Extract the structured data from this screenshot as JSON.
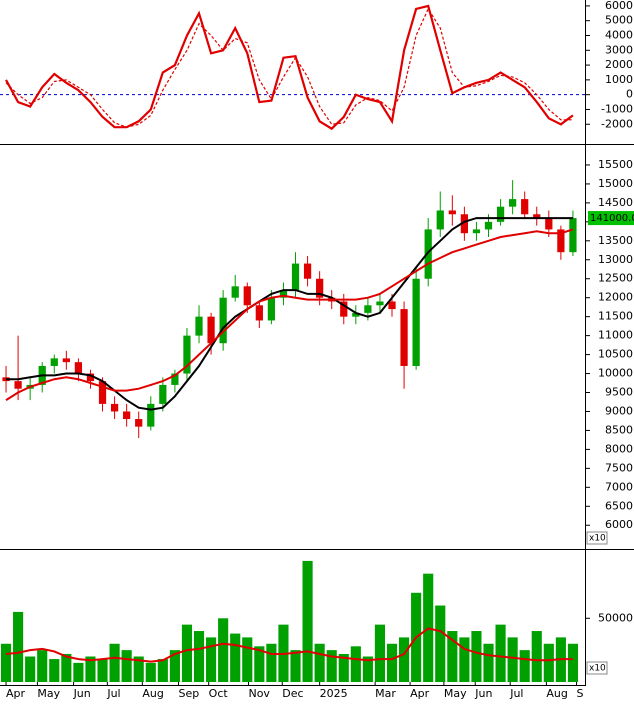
{
  "chart_data": [
    {
      "type": "line",
      "x": [
        0,
        1,
        2,
        3,
        4,
        5,
        6,
        7,
        8,
        9,
        10,
        11,
        12,
        13,
        14,
        15,
        16,
        17,
        18,
        19,
        20,
        21,
        22,
        23,
        24,
        25,
        26,
        27,
        28,
        29,
        30,
        31,
        32,
        33,
        34,
        35,
        36,
        37,
        38,
        39,
        40,
        41,
        42,
        43,
        44,
        45,
        46,
        47
      ],
      "xlim": [
        -0.5,
        48
      ],
      "ylim": [
        -3200,
        6400
      ],
      "yticks": [
        -2000,
        -1000,
        0,
        1000,
        2000,
        3000,
        4000,
        5000,
        6000
      ],
      "reference_line": {
        "value": 0,
        "color": "#0000cc"
      },
      "series": [
        {
          "color": "#e00000",
          "style": "solid",
          "values": [
            1000,
            -500,
            -800,
            500,
            1400,
            800,
            300,
            -500,
            -1500,
            -2200,
            -2200,
            -1800,
            -1000,
            1500,
            2000,
            4000,
            5500,
            2800,
            3000,
            4500,
            2800,
            -500,
            -400,
            2500,
            2600,
            -200,
            -1800,
            -2300,
            -1500,
            0,
            -300,
            -500,
            -1800,
            3000,
            5800,
            6000,
            3000,
            100,
            500,
            800,
            1000,
            1500,
            1000,
            500,
            -500,
            -1600,
            -2000,
            -1400
          ]
        },
        {
          "color": "#e00000",
          "style": "dashed",
          "values": [
            800,
            0,
            -600,
            -200,
            900,
            1000,
            500,
            0,
            -1000,
            -1900,
            -2200,
            -2000,
            -1400,
            300,
            1700,
            3000,
            4800,
            4000,
            3000,
            3800,
            3500,
            1000,
            -300,
            1200,
            2500,
            1200,
            -800,
            -2000,
            -1900,
            -700,
            -200,
            -400,
            -1100,
            500,
            4000,
            5800,
            4500,
            1500,
            500,
            600,
            900,
            1300,
            1200,
            800,
            0,
            -1000,
            -1700,
            -1700
          ]
        }
      ]
    },
    {
      "type": "candlestick",
      "x": [
        0,
        1,
        2,
        3,
        4,
        5,
        6,
        7,
        8,
        9,
        10,
        11,
        12,
        13,
        14,
        15,
        16,
        17,
        18,
        19,
        20,
        21,
        22,
        23,
        24,
        25,
        26,
        27,
        28,
        29,
        30,
        31,
        32,
        33,
        34,
        35,
        36,
        37,
        38,
        39,
        40,
        41,
        42,
        43,
        44,
        45,
        46,
        47
      ],
      "xlim": [
        -0.5,
        48
      ],
      "ylim": [
        5400,
        16000
      ],
      "yticks": [
        6000,
        6500,
        7000,
        7500,
        8000,
        8500,
        9000,
        9500,
        10000,
        10500,
        11000,
        11500,
        12000,
        12500,
        13000,
        13500,
        14000,
        14500,
        15000,
        15500
      ],
      "up_color": "#00a000",
      "down_color": "#e00000",
      "open": [
        9900,
        9800,
        9600,
        9700,
        10200,
        10400,
        10300,
        10000,
        9800,
        9200,
        9000,
        8800,
        8600,
        9200,
        9700,
        10000,
        11000,
        11500,
        10800,
        12000,
        12300,
        11800,
        11400,
        12000,
        12200,
        12900,
        12500,
        12000,
        11900,
        11500,
        11600,
        11800,
        11900,
        11700,
        10200,
        12500,
        13800,
        14300,
        14200,
        13700,
        13800,
        14000,
        14400,
        14600,
        14200,
        14100,
        13800,
        13200
      ],
      "high": [
        10200,
        11000,
        9900,
        10300,
        10500,
        10600,
        10400,
        10100,
        9900,
        9400,
        9200,
        9000,
        9400,
        9900,
        10100,
        11200,
        11800,
        11600,
        12200,
        12600,
        12400,
        11900,
        12200,
        12400,
        13200,
        13100,
        12700,
        12200,
        12100,
        11800,
        12000,
        12100,
        12100,
        11900,
        12800,
        14100,
        14800,
        14700,
        14400,
        14000,
        14200,
        14600,
        15100,
        14800,
        14400,
        14300,
        13900,
        14300
      ],
      "low": [
        9500,
        9300,
        9300,
        9500,
        10000,
        10100,
        9800,
        9600,
        9000,
        8800,
        8600,
        8300,
        8500,
        9000,
        9500,
        9800,
        10800,
        10500,
        10600,
        11900,
        11600,
        11200,
        11300,
        11800,
        12000,
        12300,
        11800,
        11700,
        11300,
        11300,
        11400,
        11600,
        11500,
        9600,
        10100,
        12300,
        13600,
        13900,
        13500,
        13500,
        13600,
        13900,
        14200,
        14100,
        13900,
        13600,
        13000,
        13100
      ],
      "close": [
        9800,
        9600,
        9700,
        10200,
        10400,
        10300,
        10000,
        9800,
        9200,
        9000,
        8800,
        8600,
        9200,
        9700,
        10000,
        11000,
        11500,
        10800,
        12000,
        12300,
        11800,
        11400,
        12000,
        12200,
        12900,
        12500,
        12000,
        11900,
        11500,
        11600,
        11800,
        11900,
        11700,
        10200,
        12500,
        13800,
        14300,
        14200,
        13700,
        13800,
        14000,
        14400,
        14600,
        14200,
        14100,
        13800,
        13200,
        14100
      ],
      "series": [
        {
          "color": "#000000",
          "values": [
            9850,
            9850,
            9900,
            9950,
            9950,
            10000,
            10000,
            9950,
            9800,
            9550,
            9300,
            9100,
            9050,
            9100,
            9400,
            9800,
            10200,
            10700,
            11200,
            11500,
            11700,
            11900,
            12100,
            12200,
            12200,
            12100,
            12100,
            12000,
            11800,
            11600,
            11500,
            11600,
            12000,
            12400,
            12800,
            13200,
            13500,
            13800,
            14000,
            14100,
            14100,
            14100,
            14100,
            14100,
            14100,
            14100,
            14100,
            14100
          ]
        },
        {
          "color": "#e00000",
          "values": [
            9300,
            9500,
            9650,
            9750,
            9850,
            9900,
            9850,
            9750,
            9650,
            9550,
            9550,
            9600,
            9700,
            9800,
            9950,
            10200,
            10500,
            10800,
            11100,
            11400,
            11700,
            11900,
            12000,
            12050,
            12000,
            11950,
            11950,
            11950,
            11950,
            11950,
            12000,
            12100,
            12300,
            12500,
            12700,
            12900,
            13050,
            13200,
            13300,
            13400,
            13500,
            13600,
            13650,
            13700,
            13750,
            13700,
            13700,
            13800
          ]
        }
      ],
      "last_label": "141000.0",
      "last_label_color": "#00c000",
      "axis_note": "x10"
    },
    {
      "type": "bar",
      "x": [
        0,
        1,
        2,
        3,
        4,
        5,
        6,
        7,
        8,
        9,
        10,
        11,
        12,
        13,
        14,
        15,
        16,
        17,
        18,
        19,
        20,
        21,
        22,
        23,
        24,
        25,
        26,
        27,
        28,
        29,
        30,
        31,
        32,
        33,
        34,
        35,
        36,
        37,
        38,
        39,
        40,
        41,
        42,
        43,
        44,
        45,
        46,
        47
      ],
      "xlim": [
        -0.5,
        48
      ],
      "xticks": [
        {
          "value": 0,
          "label": "Apr"
        },
        {
          "value": 2.6,
          "label": "May"
        },
        {
          "value": 5.6,
          "label": "Jun"
        },
        {
          "value": 8.4,
          "label": "Jul"
        },
        {
          "value": 11.3,
          "label": "Aug"
        },
        {
          "value": 14.3,
          "label": "Sep"
        },
        {
          "value": 16.8,
          "label": "Oct"
        },
        {
          "value": 20.1,
          "label": "Nov"
        },
        {
          "value": 22.9,
          "label": "Dec"
        },
        {
          "value": 26,
          "label": "2025"
        },
        {
          "value": 30.6,
          "label": "Mar"
        },
        {
          "value": 33.5,
          "label": "Apr"
        },
        {
          "value": 36.3,
          "label": "May"
        },
        {
          "value": 38.9,
          "label": "Jun"
        },
        {
          "value": 41.8,
          "label": "Jul"
        },
        {
          "value": 44.8,
          "label": "Aug"
        },
        {
          "value": 47.3,
          "label": "S"
        }
      ],
      "ylim": [
        0,
        102000
      ],
      "yticks": [
        50000
      ],
      "series": [
        {
          "kind": "bar",
          "color": "#00a000",
          "values": [
            30000,
            55000,
            20000,
            25000,
            18000,
            22000,
            15000,
            20000,
            18000,
            30000,
            25000,
            20000,
            15000,
            18000,
            25000,
            45000,
            40000,
            35000,
            50000,
            38000,
            35000,
            28000,
            30000,
            45000,
            25000,
            95000,
            30000,
            25000,
            22000,
            28000,
            20000,
            45000,
            30000,
            35000,
            70000,
            85000,
            60000,
            40000,
            35000,
            40000,
            30000,
            45000,
            35000,
            25000,
            40000,
            30000,
            35000,
            30000
          ]
        },
        {
          "kind": "line",
          "color": "#e00000",
          "values": [
            22000,
            23000,
            25000,
            26000,
            24000,
            20000,
            18000,
            17000,
            18000,
            19000,
            18000,
            17000,
            16000,
            17000,
            22000,
            25000,
            26000,
            28000,
            30000,
            29000,
            27000,
            25000,
            22000,
            22000,
            23000,
            24000,
            22000,
            20000,
            19000,
            18000,
            17000,
            18000,
            18000,
            22000,
            35000,
            42000,
            40000,
            33000,
            26000,
            23000,
            21000,
            20000,
            19000,
            18000,
            17000,
            17000,
            18000,
            18000
          ]
        }
      ],
      "axis_note": "x10"
    }
  ]
}
